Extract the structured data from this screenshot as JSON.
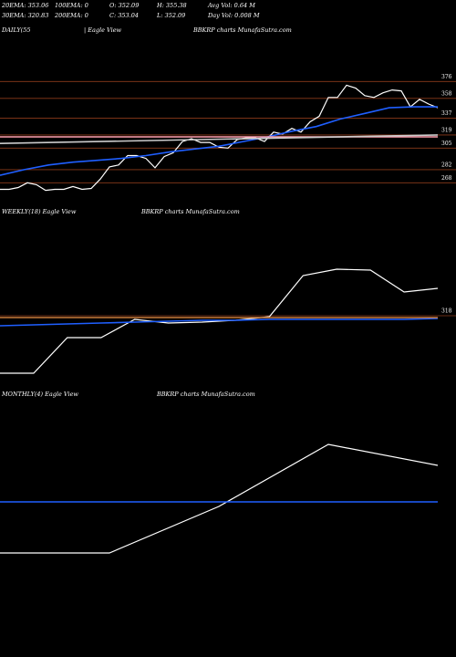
{
  "header": {
    "stats": [
      [
        "20EMA: 353.06",
        "100EMA: 0",
        "O: 352.09",
        "H: 355.38",
        "Avg Vol: 0.64  M"
      ],
      [
        "30EMA: 320.83",
        "200EMA: 0",
        "C: 353.04",
        "L: 352.09",
        "Day Vol: 0.008 M"
      ]
    ]
  },
  "chart_data": [
    {
      "type": "line",
      "label": "DAILY(55",
      "view": "| Eagle  View",
      "title": "BBKRP charts MunafaSutra.com",
      "ylim": [
        244,
        424
      ],
      "yticks": [
        376,
        358,
        337,
        319,
        305,
        282,
        268
      ],
      "grid": true,
      "grid_color": "#8b3a1a",
      "series": [
        {
          "color": "#ffffff",
          "values": [
            261,
            261,
            263,
            268,
            266,
            260,
            261,
            261,
            264,
            261,
            262,
            272,
            285,
            287,
            297,
            297,
            294,
            284,
            296,
            300,
            312,
            315,
            311,
            311,
            306,
            305,
            314,
            316,
            316,
            312,
            322,
            320,
            326,
            322,
            333,
            339,
            359,
            359,
            372,
            369,
            361,
            359,
            364,
            367,
            366,
            349,
            357,
            352,
            348
          ]
        },
        {
          "color": "#1f5fff",
          "values": [
            276,
            282,
            287,
            290,
            292,
            294,
            297,
            301,
            304,
            307,
            312,
            317,
            323,
            328,
            336,
            342,
            348,
            349,
            349
          ]
        },
        {
          "color": "#ff9fb0",
          "values": [
            317,
            317
          ]
        },
        {
          "color": "#cccccc",
          "values": [
            310,
            319
          ]
        }
      ]
    },
    {
      "type": "line",
      "label": "WEEKLY(18) Eagle  View",
      "title": "BBKRP charts MunafaSutra.com",
      "ylim": [
        244,
        424
      ],
      "yticks": [
        318
      ],
      "grid": true,
      "grid_color": "#8b3a1a",
      "series": [
        {
          "color": "#ffffff",
          "values": [
            255,
            255,
            294,
            294,
            314,
            310,
            311,
            313,
            317,
            362,
            369,
            368,
            344,
            348
          ]
        },
        {
          "color": "#1f5fff",
          "values": [
            307,
            308,
            309,
            310,
            311,
            312,
            313,
            313,
            314,
            314,
            314,
            314,
            314,
            315
          ]
        },
        {
          "color": "#c87a3a",
          "values": [
            316,
            316
          ]
        }
      ]
    },
    {
      "type": "line",
      "label": "MONTHLY(4) Eagle  View",
      "title": "BBKRP charts MunafaSutra.com",
      "ylim": [
        244,
        504
      ],
      "grid": false,
      "series": [
        {
          "color": "#ffffff",
          "values": [
            338,
            338,
            389,
            457,
            434
          ]
        },
        {
          "color": "#1f5fff",
          "values": [
            394,
            394
          ]
        }
      ]
    }
  ]
}
